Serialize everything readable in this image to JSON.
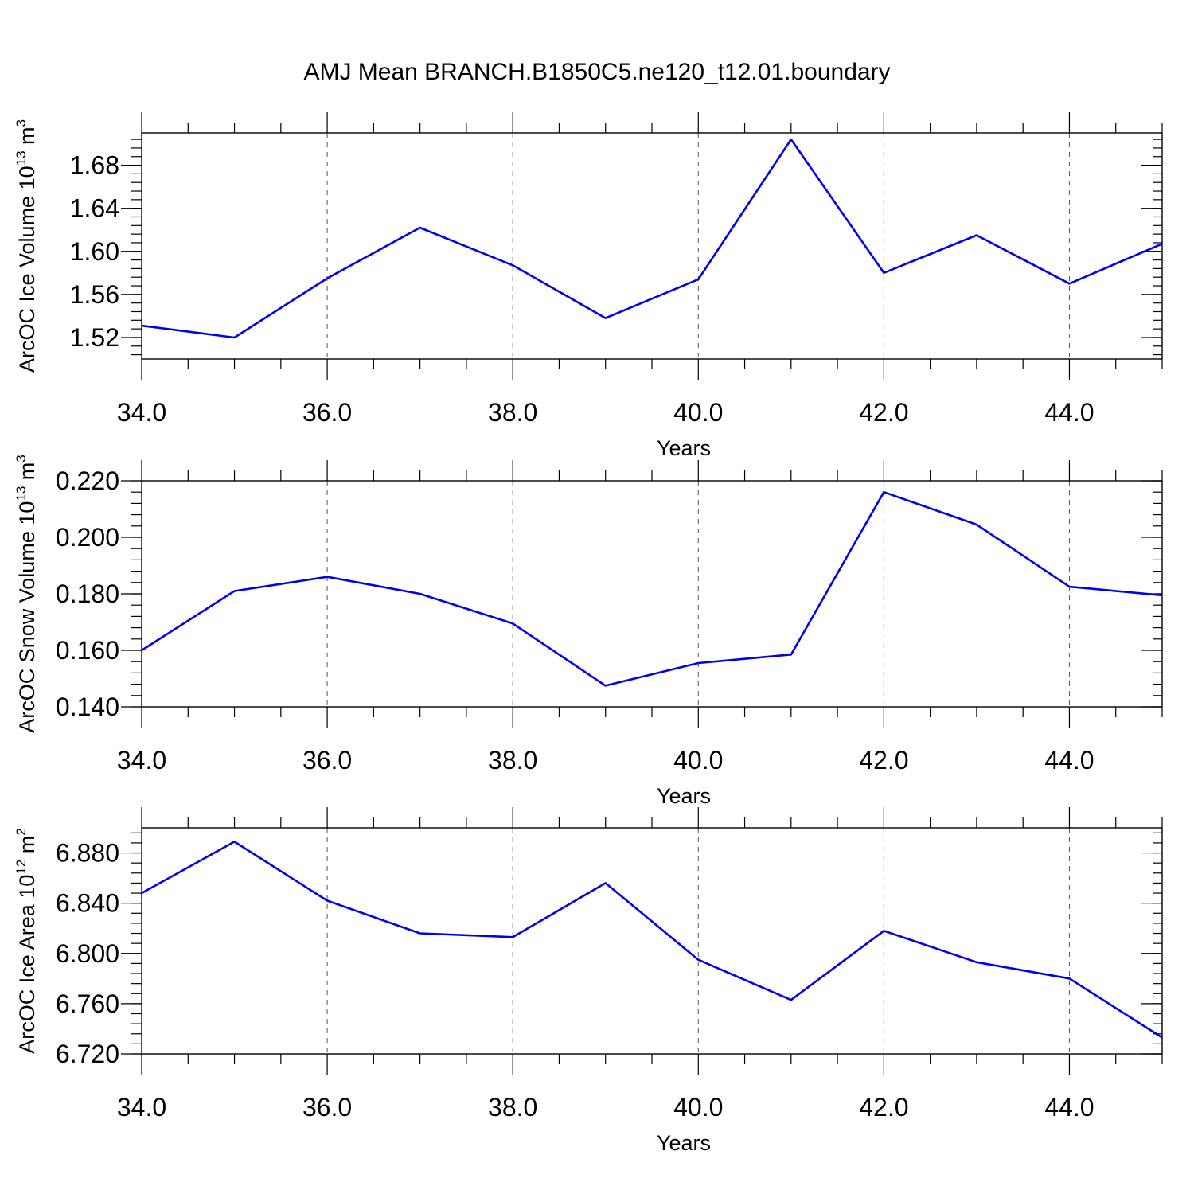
{
  "title": "AMJ Mean BRANCH.B1850C5.ne120_t12.01.boundary",
  "colors": {
    "line": "#0000ee",
    "axis": "#000000",
    "grid": "#555555"
  },
  "chart_data": [
    {
      "type": "line",
      "xlabel": "Years",
      "ylabel": {
        "text": "ArcOC Ice Volume 10",
        "exp": "13",
        "unit": " m",
        "unit_exp": "3"
      },
      "xlim": [
        34,
        45
      ],
      "ylim": [
        1.5,
        1.71
      ],
      "x_ticks": [
        34,
        36,
        38,
        40,
        42,
        44
      ],
      "x_tick_labels": [
        "34.0",
        "36.0",
        "38.0",
        "40.0",
        "42.0",
        "44.0"
      ],
      "y_ticks": [
        1.52,
        1.56,
        1.6,
        1.64,
        1.68
      ],
      "y_tick_labels": [
        "1.52",
        "1.56",
        "1.60",
        "1.64",
        "1.68"
      ],
      "y_minor_step": 0.008,
      "grid": "x dashed",
      "x": [
        34,
        35,
        36,
        37,
        38,
        39,
        40,
        41,
        42,
        43,
        44,
        45
      ],
      "values": [
        1.531,
        1.52,
        1.575,
        1.622,
        1.587,
        1.538,
        1.574,
        1.704,
        1.58,
        1.615,
        1.57,
        1.607
      ]
    },
    {
      "type": "line",
      "xlabel": "Years",
      "ylabel": {
        "text": "ArcOC Snow Volume 10",
        "exp": "13",
        "unit": " m",
        "unit_exp": "3"
      },
      "xlim": [
        34,
        45
      ],
      "ylim": [
        0.14,
        0.22
      ],
      "x_ticks": [
        34,
        36,
        38,
        40,
        42,
        44
      ],
      "x_tick_labels": [
        "34.0",
        "36.0",
        "38.0",
        "40.0",
        "42.0",
        "44.0"
      ],
      "y_ticks": [
        0.14,
        0.16,
        0.18,
        0.2,
        0.22
      ],
      "y_tick_labels": [
        "0.140",
        "0.160",
        "0.180",
        "0.200",
        "0.220"
      ],
      "y_minor_step": 0.004,
      "grid": "x dashed",
      "x": [
        34,
        35,
        36,
        37,
        38,
        39,
        40,
        41,
        42,
        43,
        44,
        45
      ],
      "values": [
        0.16,
        0.181,
        0.186,
        0.18,
        0.1695,
        0.1475,
        0.1555,
        0.1585,
        0.216,
        0.2045,
        0.1825,
        0.1795
      ]
    },
    {
      "type": "line",
      "xlabel": "Years",
      "ylabel": {
        "text": "ArcOC Ice Area 10",
        "exp": "12",
        "unit": " m",
        "unit_exp": "2"
      },
      "xlim": [
        34,
        45
      ],
      "ylim": [
        6.72,
        6.9
      ],
      "x_ticks": [
        34,
        36,
        38,
        40,
        42,
        44
      ],
      "x_tick_labels": [
        "34.0",
        "36.0",
        "38.0",
        "40.0",
        "42.0",
        "44.0"
      ],
      "y_ticks": [
        6.72,
        6.76,
        6.8,
        6.84,
        6.88
      ],
      "y_tick_labels": [
        "6.720",
        "6.760",
        "6.800",
        "6.840",
        "6.880"
      ],
      "y_minor_step": 0.008,
      "grid": "x dashed",
      "x": [
        34,
        35,
        36,
        37,
        38,
        39,
        40,
        41,
        42,
        43,
        44,
        45
      ],
      "values": [
        6.848,
        6.889,
        6.842,
        6.816,
        6.813,
        6.856,
        6.795,
        6.763,
        6.818,
        6.793,
        6.78,
        6.733
      ]
    }
  ]
}
